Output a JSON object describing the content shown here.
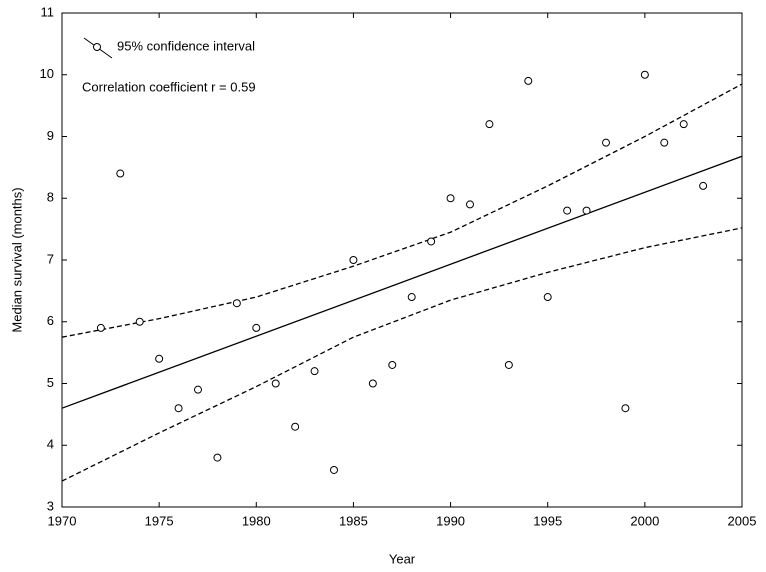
{
  "chart_data": {
    "type": "scatter",
    "xlabel": "Year",
    "ylabel": "Median survival (months)",
    "annotation": "Correlation coefficient r = 0.59",
    "xlim": [
      1970,
      2005
    ],
    "xticks": [
      1970,
      1975,
      1980,
      1985,
      1990,
      1995,
      2000,
      2005
    ],
    "ylim": [
      3,
      11
    ],
    "yticks": [
      3,
      4,
      5,
      6,
      7,
      8,
      9,
      10,
      11
    ],
    "color": "#000000",
    "x": [
      1972,
      1973,
      1974,
      1975,
      1976,
      1977,
      1978,
      1979,
      1980,
      1981,
      1982,
      1983,
      1984,
      1985,
      1986,
      1987,
      1988,
      1989,
      1990,
      1991,
      1992,
      1993,
      1994,
      1995,
      1996,
      1997,
      1998,
      1999,
      2000,
      2001,
      2002,
      2003
    ],
    "values": [
      5.9,
      8.4,
      6.0,
      5.4,
      4.6,
      4.9,
      3.8,
      6.3,
      5.9,
      5.0,
      4.3,
      5.2,
      3.6,
      7.0,
      5.0,
      5.3,
      6.4,
      7.3,
      8.0,
      7.9,
      9.2,
      5.3,
      9.9,
      6.4,
      7.8,
      7.8,
      8.9,
      4.6,
      10.0,
      8.9,
      9.2,
      8.2
    ],
    "fit": {
      "x": [
        1970,
        2005
      ],
      "values": [
        4.6,
        8.68
      ]
    },
    "confidence_interval": {
      "name": "95% confidence interval",
      "x": [
        1970,
        1975,
        1980,
        1985,
        1990,
        1995,
        2000,
        2005
      ],
      "upper": [
        5.75,
        6.05,
        6.4,
        6.9,
        7.45,
        8.2,
        9.0,
        9.85
      ],
      "lower": [
        3.42,
        4.2,
        4.95,
        5.75,
        6.35,
        6.8,
        7.2,
        7.52
      ]
    }
  }
}
